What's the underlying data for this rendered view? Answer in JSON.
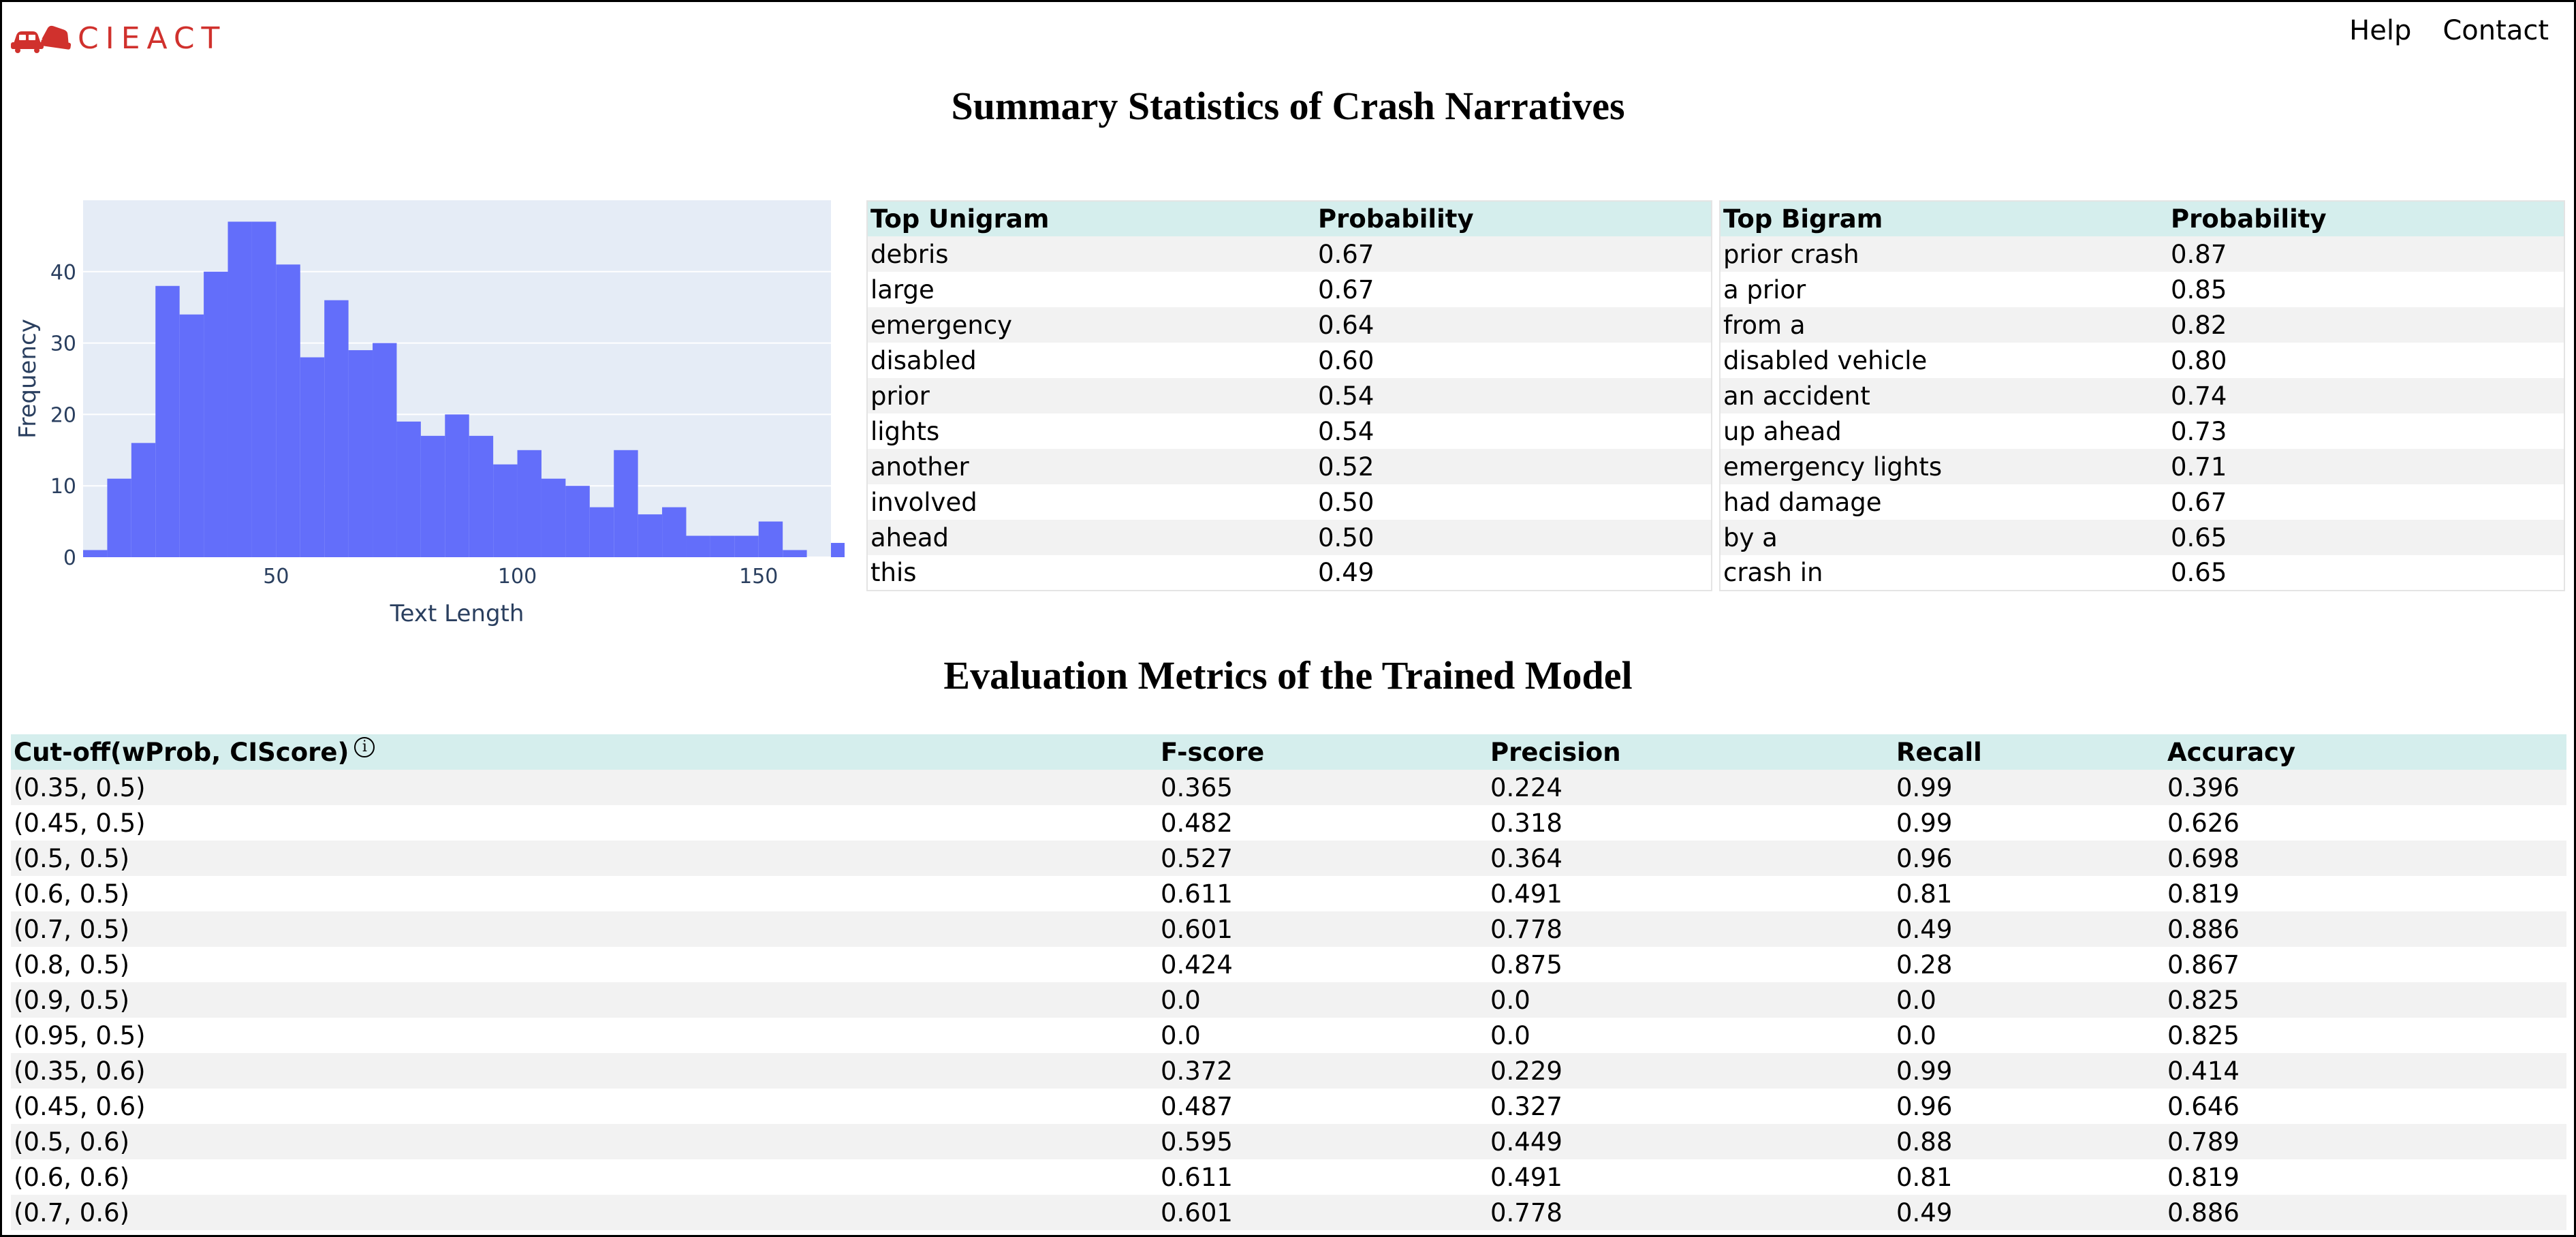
{
  "header": {
    "logo_text": "CIEACT",
    "nav": [
      {
        "label": "Help"
      },
      {
        "label": "Contact"
      }
    ],
    "logo_color": "#d0312d"
  },
  "summary": {
    "title": "Summary Statistics of Crash Narratives"
  },
  "chart_data": {
    "type": "bar",
    "title": "",
    "xlabel": "Text Length",
    "ylabel": "Frequency",
    "bin_width": 5,
    "x_start": 10,
    "values": [
      1,
      11,
      16,
      38,
      34,
      40,
      47,
      47,
      41,
      28,
      36,
      29,
      30,
      19,
      17,
      20,
      17,
      13,
      15,
      11,
      10,
      7,
      15,
      6,
      7,
      3,
      3,
      3,
      5,
      1,
      0,
      2
    ],
    "xlim": [
      10,
      165
    ],
    "ylim": [
      0,
      50
    ],
    "xticks": [
      50,
      100,
      150
    ],
    "yticks": [
      0,
      10,
      20,
      30,
      40
    ],
    "bar_color": "#636efa",
    "plot_bg": "#e5ecf6",
    "grid": true
  },
  "unigram": {
    "headers": [
      "Top Unigram",
      "Probability"
    ],
    "rows": [
      [
        "debris",
        "0.67"
      ],
      [
        "large",
        "0.67"
      ],
      [
        "emergency",
        "0.64"
      ],
      [
        "disabled",
        "0.60"
      ],
      [
        "prior",
        "0.54"
      ],
      [
        "lights",
        "0.54"
      ],
      [
        "another",
        "0.52"
      ],
      [
        "involved",
        "0.50"
      ],
      [
        "ahead",
        "0.50"
      ],
      [
        "this",
        "0.49"
      ]
    ]
  },
  "bigram": {
    "headers": [
      "Top Bigram",
      "Probability"
    ],
    "rows": [
      [
        "prior crash",
        "0.87"
      ],
      [
        "a prior",
        "0.85"
      ],
      [
        "from a",
        "0.82"
      ],
      [
        "disabled vehicle",
        "0.80"
      ],
      [
        "an accident",
        "0.74"
      ],
      [
        "up ahead",
        "0.73"
      ],
      [
        "emergency lights",
        "0.71"
      ],
      [
        "had damage",
        "0.67"
      ],
      [
        "by a",
        "0.65"
      ],
      [
        "crash in",
        "0.65"
      ]
    ]
  },
  "evaluation": {
    "title": "Evaluation Metrics of the Trained Model",
    "headers": [
      "Cut-off(wProb, CIScore)",
      "F-score",
      "Precision",
      "Recall",
      "Accuracy"
    ],
    "info_icon": "info-icon",
    "rows": [
      [
        "(0.35, 0.5)",
        "0.365",
        "0.224",
        "0.99",
        "0.396"
      ],
      [
        "(0.45, 0.5)",
        "0.482",
        "0.318",
        "0.99",
        "0.626"
      ],
      [
        "(0.5, 0.5)",
        "0.527",
        "0.364",
        "0.96",
        "0.698"
      ],
      [
        "(0.6, 0.5)",
        "0.611",
        "0.491",
        "0.81",
        "0.819"
      ],
      [
        "(0.7, 0.5)",
        "0.601",
        "0.778",
        "0.49",
        "0.886"
      ],
      [
        "(0.8, 0.5)",
        "0.424",
        "0.875",
        "0.28",
        "0.867"
      ],
      [
        "(0.9, 0.5)",
        "0.0",
        "0.0",
        "0.0",
        "0.825"
      ],
      [
        "(0.95, 0.5)",
        "0.0",
        "0.0",
        "0.0",
        "0.825"
      ],
      [
        "(0.35, 0.6)",
        "0.372",
        "0.229",
        "0.99",
        "0.414"
      ],
      [
        "(0.45, 0.6)",
        "0.487",
        "0.327",
        "0.96",
        "0.646"
      ],
      [
        "(0.5, 0.6)",
        "0.595",
        "0.449",
        "0.88",
        "0.789"
      ],
      [
        "(0.6, 0.6)",
        "0.611",
        "0.491",
        "0.81",
        "0.819"
      ],
      [
        "(0.7, 0.6)",
        "0.601",
        "0.778",
        "0.49",
        "0.886"
      ]
    ]
  }
}
